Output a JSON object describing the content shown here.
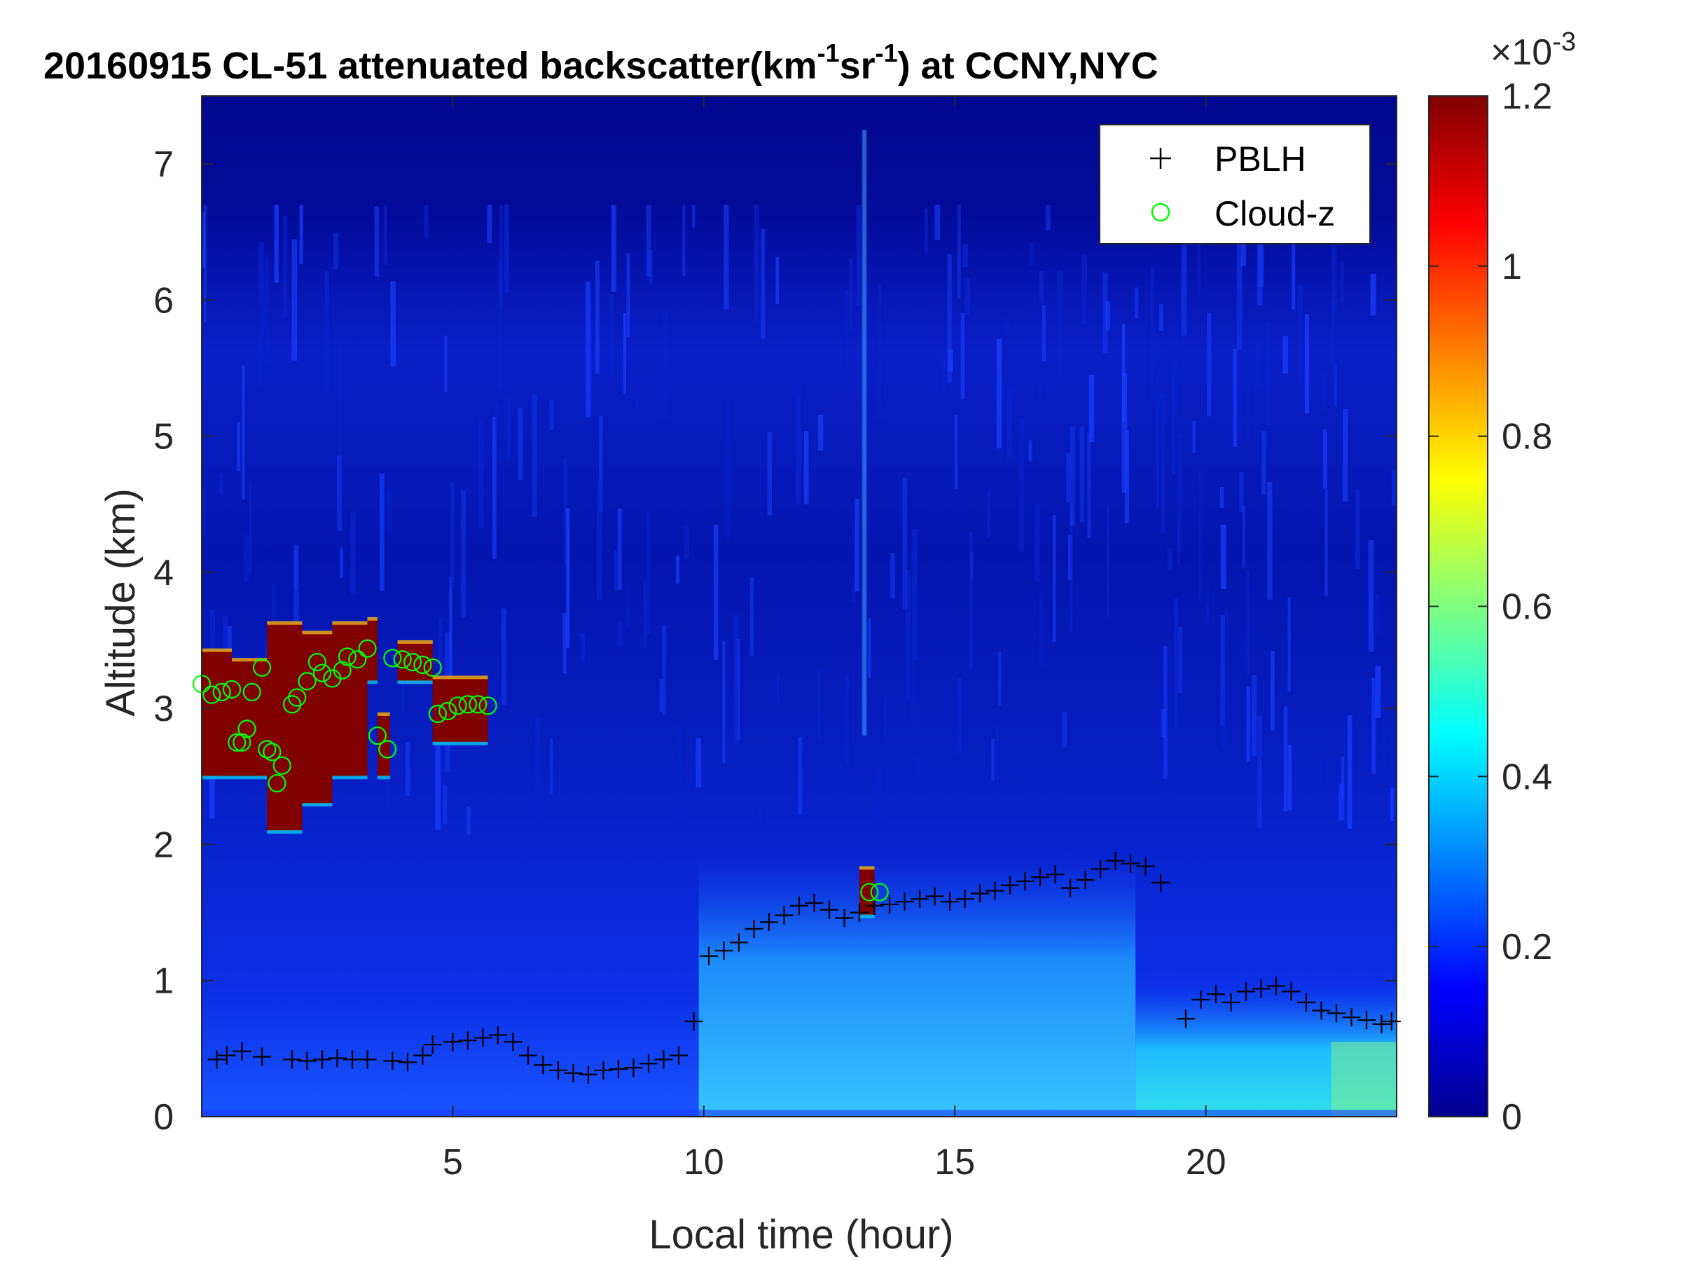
{
  "chart_data": {
    "type": "heatmap",
    "title_main": "20160915  CL-51 attenuated backscatter(km",
    "title_sup1": "-1",
    "title_mid": "sr",
    "title_sup2": "-1",
    "title_end": ") at CCNY,NYC",
    "xlabel": "Local time (hour)",
    "ylabel": "Altitude (km)",
    "xlim": [
      0,
      23.8
    ],
    "ylim": [
      0,
      7.5
    ],
    "xticks": [
      5,
      10,
      15,
      20
    ],
    "xtick_labels": [
      "5",
      "10",
      "15",
      "20"
    ],
    "yticks": [
      0,
      1,
      2,
      3,
      4,
      5,
      6,
      7
    ],
    "ytick_labels": [
      "0",
      "1",
      "2",
      "3",
      "4",
      "5",
      "6",
      "7"
    ],
    "colorbar": {
      "colormap": "jet",
      "range": [
        0,
        0.0012
      ],
      "ticks": [
        0,
        0.2,
        0.4,
        0.6,
        0.8,
        1.0,
        1.2
      ],
      "tick_labels": [
        "0",
        "0.2",
        "0.4",
        "0.6",
        "0.8",
        "1",
        "1.2"
      ],
      "exponent_label": "×10",
      "exponent_power": "-3"
    },
    "legend": {
      "location": "top-right",
      "entries": [
        {
          "label": "PBLH",
          "marker": "+",
          "color": "#000000"
        },
        {
          "label": "Cloud-z",
          "marker": "o",
          "color": "#00ff00"
        }
      ]
    },
    "series": [
      {
        "name": "PBLH",
        "x": [
          0.3,
          0.5,
          0.8,
          1.2,
          1.8,
          2.1,
          2.4,
          2.7,
          3.0,
          3.3,
          3.8,
          4.1,
          4.4,
          4.6,
          5.0,
          5.3,
          5.6,
          5.9,
          6.2,
          6.5,
          6.8,
          7.1,
          7.4,
          7.7,
          8.0,
          8.3,
          8.6,
          8.9,
          9.2,
          9.5,
          9.8,
          10.1,
          10.4,
          10.7,
          11.0,
          11.3,
          11.6,
          11.9,
          12.2,
          12.5,
          12.8,
          13.1,
          13.4,
          13.7,
          14.0,
          14.3,
          14.6,
          14.9,
          15.2,
          15.5,
          15.8,
          16.1,
          16.4,
          16.7,
          17.0,
          17.3,
          17.6,
          17.9,
          18.2,
          18.5,
          18.8,
          19.1,
          19.6,
          19.9,
          20.2,
          20.5,
          20.8,
          21.1,
          21.4,
          21.7,
          22.0,
          22.3,
          22.6,
          22.9,
          23.2,
          23.5,
          23.7
        ],
        "y": [
          0.42,
          0.45,
          0.48,
          0.44,
          0.42,
          0.41,
          0.42,
          0.43,
          0.42,
          0.42,
          0.41,
          0.4,
          0.45,
          0.53,
          0.55,
          0.56,
          0.58,
          0.6,
          0.55,
          0.45,
          0.38,
          0.34,
          0.32,
          0.31,
          0.34,
          0.35,
          0.36,
          0.39,
          0.42,
          0.45,
          0.7,
          1.18,
          1.22,
          1.28,
          1.38,
          1.43,
          1.48,
          1.55,
          1.57,
          1.52,
          1.46,
          1.5,
          1.55,
          1.56,
          1.58,
          1.6,
          1.62,
          1.58,
          1.6,
          1.64,
          1.66,
          1.7,
          1.73,
          1.76,
          1.78,
          1.68,
          1.74,
          1.82,
          1.88,
          1.86,
          1.84,
          1.72,
          0.72,
          0.86,
          0.9,
          0.84,
          0.92,
          0.94,
          0.96,
          0.92,
          0.84,
          0.78,
          0.76,
          0.73,
          0.71,
          0.68,
          0.7
        ]
      },
      {
        "name": "Cloud-z",
        "x": [
          0.0,
          0.2,
          0.4,
          0.6,
          0.7,
          0.8,
          0.9,
          1.0,
          1.2,
          1.3,
          1.4,
          1.5,
          1.6,
          1.8,
          1.9,
          2.1,
          2.3,
          2.4,
          2.6,
          2.8,
          2.9,
          3.1,
          3.3,
          3.5,
          3.7,
          3.8,
          4.0,
          4.2,
          4.4,
          4.6,
          4.7,
          4.9,
          5.1,
          5.3,
          5.5,
          5.7,
          13.3,
          13.5
        ],
        "y": [
          3.18,
          3.1,
          3.12,
          3.14,
          2.75,
          2.75,
          2.85,
          3.12,
          3.3,
          2.7,
          2.68,
          2.45,
          2.58,
          3.03,
          3.08,
          3.2,
          3.34,
          3.26,
          3.22,
          3.28,
          3.38,
          3.36,
          3.44,
          2.8,
          2.7,
          3.37,
          3.36,
          3.34,
          3.32,
          3.3,
          2.96,
          2.98,
          3.02,
          3.03,
          3.03,
          3.02,
          1.65,
          1.65
        ]
      }
    ],
    "cloud_regions": [
      {
        "t_start": 0.0,
        "t_end": 0.6,
        "z_bottom": 2.5,
        "z_top": 3.42
      },
      {
        "t_start": 0.6,
        "t_end": 1.3,
        "z_bottom": 2.5,
        "z_top": 3.35
      },
      {
        "t_start": 1.3,
        "t_end": 2.0,
        "z_bottom": 2.1,
        "z_top": 3.62
      },
      {
        "t_start": 2.0,
        "t_end": 2.6,
        "z_bottom": 2.3,
        "z_top": 3.55
      },
      {
        "t_start": 2.6,
        "t_end": 3.3,
        "z_bottom": 2.5,
        "z_top": 3.62
      },
      {
        "t_start": 3.3,
        "t_end": 3.5,
        "z_bottom": 3.2,
        "z_top": 3.65
      },
      {
        "t_start": 3.5,
        "t_end": 3.75,
        "z_bottom": 2.5,
        "z_top": 2.95
      },
      {
        "t_start": 3.9,
        "t_end": 4.6,
        "z_bottom": 3.2,
        "z_top": 3.48
      },
      {
        "t_start": 4.6,
        "t_end": 5.7,
        "z_bottom": 2.75,
        "z_top": 3.22
      },
      {
        "t_start": 13.1,
        "t_end": 13.4,
        "z_bottom": 1.48,
        "z_top": 1.82
      }
    ]
  }
}
